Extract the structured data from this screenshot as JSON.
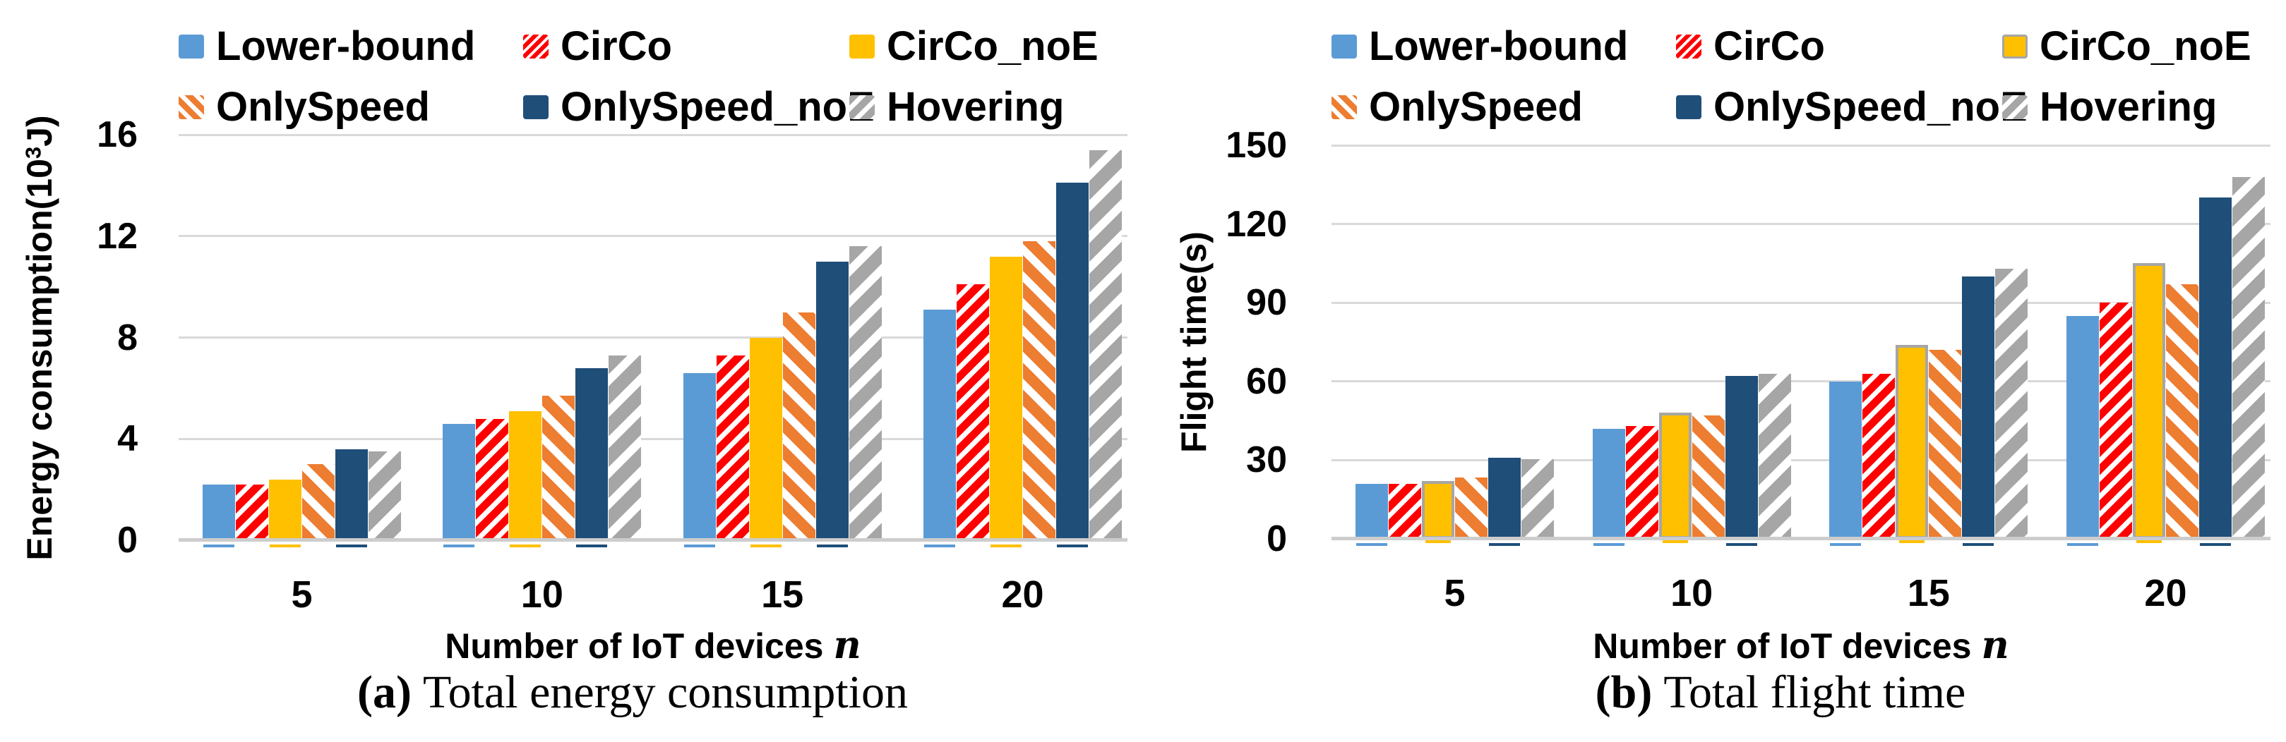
{
  "figure": {
    "description_note": "Two grouped bar charts comparing UAV schemes"
  },
  "chart_data": [
    {
      "type": "bar",
      "panel": "a",
      "caption_label": "(a)",
      "caption_text": "Total energy consumption",
      "ylabel_pre": "Energy consumption(10",
      "ylabel_sup": "3",
      "ylabel_post": "J)",
      "xlabel": "Number of IoT devices",
      "xlabel_var": "n",
      "categories": [
        "5",
        "10",
        "15",
        "20"
      ],
      "yticks": [
        0,
        4,
        8,
        12,
        16
      ],
      "ylim": [
        0,
        16
      ],
      "grid": true,
      "legend_position": "top, two rows",
      "series": [
        {
          "name": "Lower-bound",
          "pattern": "solid",
          "color": "#5B9BD5",
          "values": [
            2.2,
            4.6,
            6.6,
            9.1
          ]
        },
        {
          "name": "CirCo",
          "pattern": "diag-up",
          "color": "#FF0000",
          "stripe": [
            11,
            7
          ],
          "values": [
            2.2,
            4.8,
            7.3,
            10.1
          ]
        },
        {
          "name": "CirCo_noE",
          "pattern": "solid",
          "color": "#FFC000",
          "values": [
            2.4,
            5.1,
            8.0,
            11.2
          ]
        },
        {
          "name": "OnlySpeed",
          "pattern": "diag-down",
          "color": "#ED7D31",
          "stripe": [
            16,
            11
          ],
          "values": [
            3.0,
            5.7,
            9.0,
            11.8
          ]
        },
        {
          "name": "OnlySpeed_noE",
          "pattern": "solid",
          "color": "#1F4E79",
          "values": [
            3.6,
            6.8,
            11.0,
            14.1
          ]
        },
        {
          "name": "Hovering",
          "pattern": "diag-up",
          "color": "#A6A6A6",
          "stripe": [
            19,
            12
          ],
          "values": [
            3.5,
            7.3,
            11.6,
            15.4
          ]
        }
      ]
    },
    {
      "type": "bar",
      "panel": "b",
      "caption_label": "(b)",
      "caption_text": "Total flight time",
      "ylabel_pre": "Flight time(s)",
      "ylabel_sup": "",
      "ylabel_post": "",
      "xlabel": "Number of IoT devices",
      "xlabel_var": "n",
      "categories": [
        "5",
        "10",
        "15",
        "20"
      ],
      "yticks": [
        0,
        30,
        60,
        90,
        120,
        150
      ],
      "ylim": [
        0,
        150
      ],
      "grid": true,
      "legend_position": "top, two rows",
      "series": [
        {
          "name": "Lower-bound",
          "pattern": "solid",
          "color": "#5B9BD5",
          "values": [
            21,
            42,
            60,
            85
          ]
        },
        {
          "name": "CirCo",
          "pattern": "diag-up",
          "color": "#FF0000",
          "stripe": [
            11,
            7
          ],
          "values": [
            21,
            43,
            63,
            90
          ]
        },
        {
          "name": "CirCo_noE",
          "pattern": "solid",
          "color": "#FFC000",
          "border": "#A6A6A6",
          "values": [
            22,
            48,
            74,
            105
          ]
        },
        {
          "name": "OnlySpeed",
          "pattern": "diag-down",
          "color": "#ED7D31",
          "stripe": [
            16,
            11
          ],
          "values": [
            23.5,
            47,
            72,
            97
          ]
        },
        {
          "name": "OnlySpeed_noE",
          "pattern": "solid",
          "color": "#1F4E79",
          "values": [
            31,
            62,
            100,
            130
          ]
        },
        {
          "name": "Hovering",
          "pattern": "diag-up",
          "color": "#A6A6A6",
          "stripe": [
            19,
            12
          ],
          "values": [
            30.5,
            63,
            103,
            138
          ]
        }
      ]
    }
  ]
}
